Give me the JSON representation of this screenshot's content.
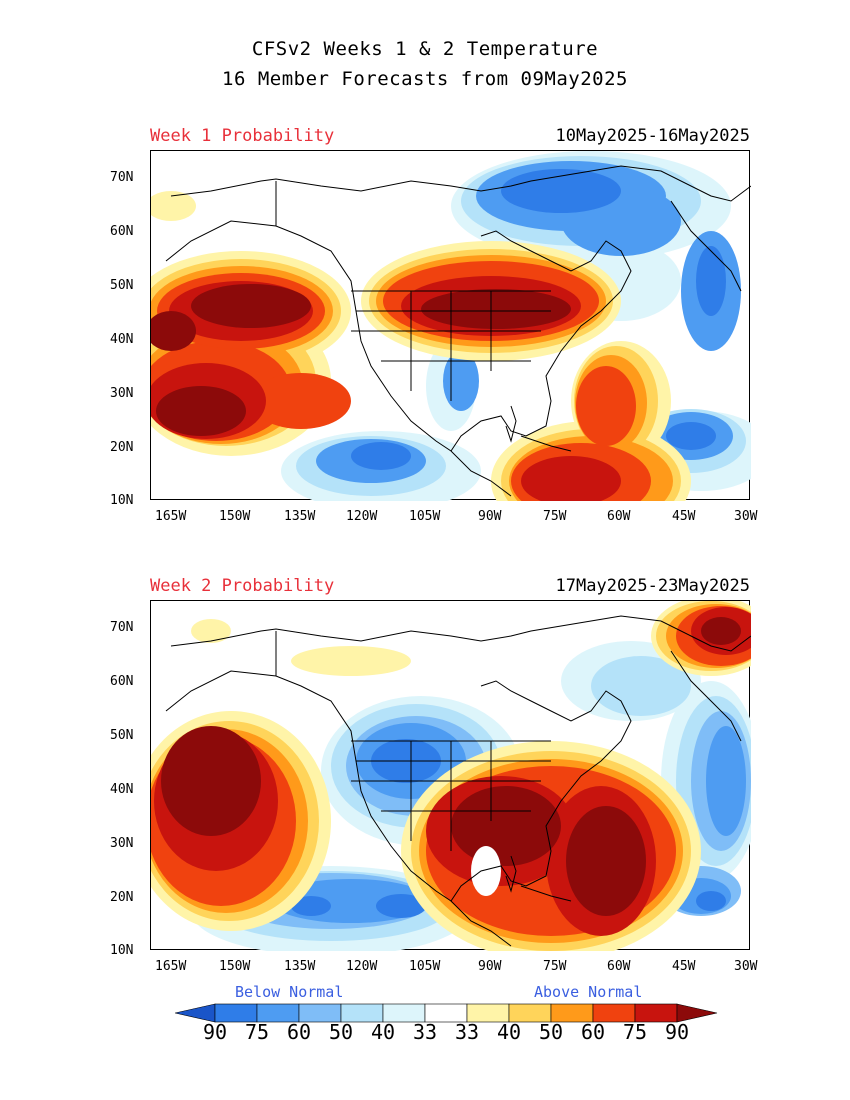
{
  "title": {
    "line1": "CFSv2 Weeks 1 & 2 Temperature",
    "line2": "16 Member Forecasts from 09May2025"
  },
  "panels": [
    {
      "label": "Week 1 Probability",
      "dates": "10May2025-16May2025",
      "y_ticks": [
        "70N",
        "60N",
        "50N",
        "40N",
        "30N",
        "20N",
        "10N"
      ],
      "x_ticks": [
        "165W",
        "150W",
        "135W",
        "120W",
        "105W",
        "90W",
        "75W",
        "60W",
        "45W",
        "30W"
      ]
    },
    {
      "label": "Week 2 Probability",
      "dates": "17May2025-23May2025",
      "y_ticks": [
        "70N",
        "60N",
        "50N",
        "40N",
        "30N",
        "20N",
        "10N"
      ],
      "x_ticks": [
        "165W",
        "150W",
        "135W",
        "120W",
        "105W",
        "90W",
        "75W",
        "60W",
        "45W",
        "30W"
      ]
    }
  ],
  "legend": {
    "below_label": "Below Normal",
    "above_label": "Above Normal",
    "numbers": [
      "90",
      "75",
      "60",
      "50",
      "40",
      "33",
      "33",
      "40",
      "50",
      "60",
      "75",
      "90"
    ],
    "colors": [
      "#1a55c8",
      "#2f7de8",
      "#4e9cf2",
      "#7fbdf7",
      "#b4e2f9",
      "#ddf5fb",
      "#ffffff",
      "#fff4a8",
      "#ffd45a",
      "#ff9a1a",
      "#f0420f",
      "#c8140e",
      "#8c0a0a"
    ]
  }
}
